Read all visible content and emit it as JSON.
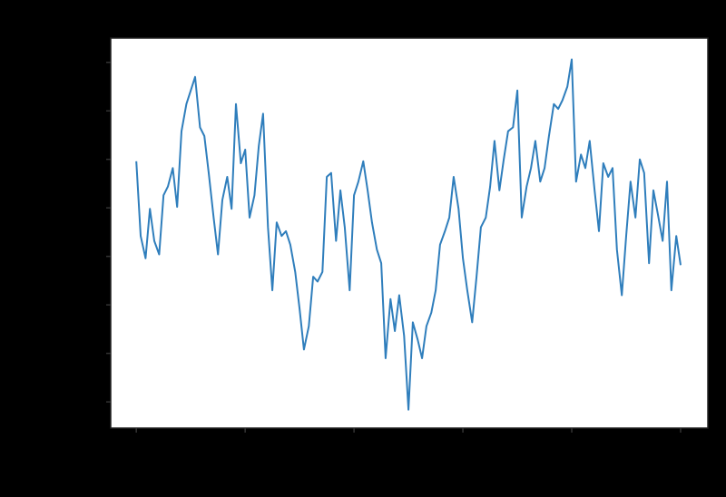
{
  "chart_data": {
    "type": "line",
    "color": "#2f7ebc",
    "grid": false,
    "x": [
      0,
      8,
      17,
      25,
      33,
      42,
      50,
      58,
      67,
      75,
      83,
      92,
      100,
      108,
      117,
      125,
      133,
      142,
      150,
      158,
      167,
      175,
      183,
      192,
      200,
      208,
      217,
      225,
      233,
      242,
      250,
      258,
      267,
      275,
      283,
      292,
      300,
      308,
      317,
      325,
      333,
      342,
      350,
      358,
      367,
      375,
      383,
      392,
      400,
      408,
      417,
      425,
      433,
      442,
      450,
      458,
      467,
      475,
      483,
      492,
      500,
      508,
      517,
      525,
      533,
      542,
      550,
      558,
      567,
      575,
      583,
      592,
      600,
      608,
      617,
      625,
      633,
      642,
      650,
      658,
      667,
      675,
      683,
      692,
      700,
      708,
      717,
      725,
      733,
      742,
      750,
      758,
      767,
      775,
      783,
      792,
      800,
      808,
      817,
      825,
      833,
      842,
      850,
      858,
      867,
      875,
      883,
      892,
      900,
      908,
      917,
      925,
      933,
      942,
      950,
      958,
      967,
      975,
      983,
      992,
      1000
    ],
    "values": [
      24.8,
      17.1,
      14.8,
      19.9,
      16.6,
      15.2,
      21.3,
      22.2,
      24.1,
      20.1,
      27.9,
      30.7,
      32.1,
      33.5,
      28.3,
      27.4,
      23.6,
      19.0,
      15.2,
      20.8,
      23.2,
      19.9,
      30.7,
      24.6,
      26.0,
      19.0,
      21.3,
      26.4,
      29.7,
      18.0,
      11.5,
      18.5,
      17.1,
      17.6,
      16.2,
      13.4,
      9.6,
      5.4,
      7.8,
      12.9,
      12.4,
      13.4,
      23.2,
      23.6,
      16.6,
      21.8,
      18.0,
      11.5,
      21.3,
      22.7,
      24.8,
      21.8,
      18.5,
      15.7,
      14.3,
      4.5,
      10.6,
      7.3,
      11.0,
      6.8,
      -0.8,
      8.2,
      6.4,
      4.5,
      7.8,
      9.2,
      11.5,
      16.2,
      17.6,
      19.0,
      23.2,
      19.9,
      14.8,
      11.5,
      8.2,
      12.9,
      18.0,
      19.0,
      22.2,
      26.9,
      21.8,
      25.0,
      27.9,
      28.3,
      32.1,
      19.0,
      22.2,
      24.1,
      26.9,
      22.7,
      24.1,
      27.4,
      30.7,
      30.2,
      31.1,
      32.5,
      35.3,
      22.7,
      25.5,
      24.1,
      26.9,
      21.8,
      17.6,
      24.6,
      23.2,
      24.1,
      15.7,
      11.0,
      17.1,
      22.7,
      19.0,
      25.0,
      23.6,
      14.3,
      21.8,
      19.4,
      16.6,
      22.7,
      11.5,
      17.1,
      14.1
    ],
    "xlim": [
      -47,
      1050
    ],
    "xticks": [
      0,
      200,
      400,
      600,
      800,
      1000
    ],
    "ylim": [
      -2.7,
      37.5
    ],
    "yticks": [
      0,
      5,
      10,
      15,
      20,
      25,
      30,
      35
    ]
  }
}
